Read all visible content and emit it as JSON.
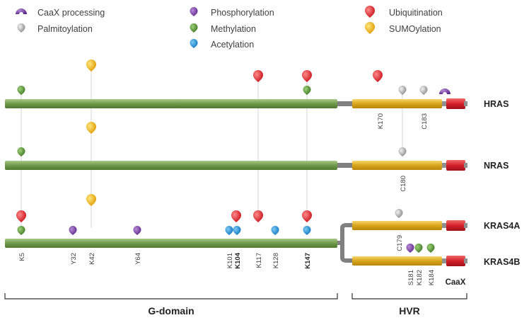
{
  "legend": [
    {
      "label": "CaaX processing",
      "icon": "caax-icon",
      "color": "#6a2c8e"
    },
    {
      "label": "Palmitoylation",
      "icon": "palmitoylation-icon",
      "color": "#a8a8a8"
    },
    {
      "label": "Phosphorylation",
      "icon": "phosphorylation-icon",
      "color": "#7a4a9e"
    },
    {
      "label": "Methylation",
      "icon": "methylation-icon",
      "color": "#5f9a3a"
    },
    {
      "label": "Acetylation",
      "icon": "acetylation-icon",
      "color": "#1d8fd6"
    },
    {
      "label": "Ubiquitination",
      "icon": "ubiquitination-icon",
      "color": "#d8232a"
    },
    {
      "label": "SUMOylation",
      "icon": "sumoylation-icon",
      "color": "#f0b400"
    }
  ],
  "proteins": {
    "hras": "HRAS",
    "nras": "NRAS",
    "kras4a": "KRAS4A",
    "kras4b": "KRAS4B"
  },
  "residues": {
    "hras_k170": "K170",
    "hras_c183": "C183",
    "nras_c180": "C180",
    "k5": "K5",
    "y32": "Y32",
    "k42": "K42",
    "y64": "Y64",
    "k101": "K101",
    "k104": "K104",
    "k117": "K117",
    "k128": "K128",
    "k147": "K147",
    "c179": "C179",
    "s181": "S181",
    "k182": "K182",
    "k184": "K184"
  },
  "caax_label": "CaaX",
  "domains": {
    "g_domain": "G-domain",
    "hvr": "HVR"
  },
  "colors": {
    "gdomain": "#7fa35a",
    "hvr": "#e0b020",
    "caax_box": "#d9262c",
    "linker": "#808080"
  }
}
